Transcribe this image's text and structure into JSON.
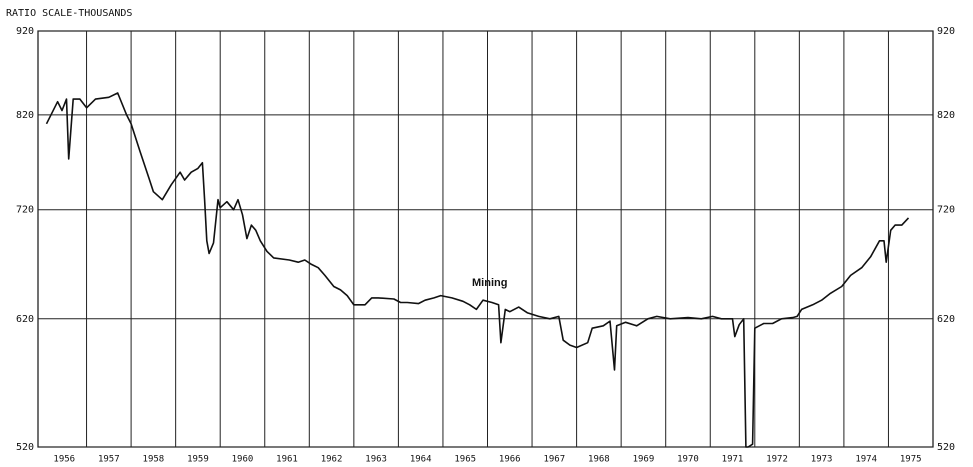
{
  "chart_data": {
    "type": "line",
    "y_label": "RATIO SCALE-THOUSANDS",
    "annotation": "Mining",
    "log": true,
    "grid": true,
    "color": "#111111",
    "ylim": [
      520,
      920
    ],
    "yticks": [
      520,
      620,
      720,
      820,
      920
    ],
    "xlim": [
      1956,
      1976
    ],
    "categories": [
      "1956",
      "1957",
      "1958",
      "1959",
      "1960",
      "1961",
      "1962",
      "1963",
      "1964",
      "1965",
      "1966",
      "1967",
      "1968",
      "1969",
      "1970",
      "1971",
      "1972",
      "1973",
      "1974",
      "1975"
    ],
    "x": [
      1956.1,
      1956.35,
      1956.45,
      1956.55,
      1956.6,
      1956.7,
      1956.85,
      1957.0,
      1957.2,
      1957.5,
      1957.7,
      1957.9,
      1958.0,
      1958.2,
      1958.4,
      1958.5,
      1958.7,
      1958.9,
      1959.1,
      1959.2,
      1959.35,
      1959.5,
      1959.6,
      1959.65,
      1959.7,
      1959.75,
      1959.85,
      1959.95,
      1960.0,
      1960.15,
      1960.3,
      1960.4,
      1960.5,
      1960.6,
      1960.7,
      1960.8,
      1960.9,
      1961.05,
      1961.2,
      1961.55,
      1961.75,
      1961.9,
      1962.05,
      1962.2,
      1962.35,
      1962.55,
      1962.7,
      1962.85,
      1963.0,
      1963.25,
      1963.4,
      1963.55,
      1963.9,
      1964.05,
      1964.2,
      1964.45,
      1964.6,
      1964.8,
      1964.95,
      1965.2,
      1965.45,
      1965.6,
      1965.75,
      1965.9,
      1966.1,
      1966.25,
      1966.3,
      1966.4,
      1966.5,
      1966.7,
      1966.9,
      1967.15,
      1967.4,
      1967.6,
      1967.7,
      1967.85,
      1968.0,
      1968.25,
      1968.35,
      1968.6,
      1968.75,
      1968.85,
      1968.9,
      1969.1,
      1969.35,
      1969.6,
      1969.8,
      1970.1,
      1970.5,
      1970.8,
      1971.05,
      1971.25,
      1971.5,
      1971.55,
      1971.65,
      1971.75,
      1971.8,
      1971.85,
      1971.95,
      1972.0,
      1972.2,
      1972.4,
      1972.6,
      1972.85,
      1972.95,
      1973.05,
      1973.3,
      1973.5,
      1973.7,
      1973.95,
      1974.15,
      1974.4,
      1974.6,
      1974.8,
      1974.9,
      1974.95,
      1975.05,
      1975.15,
      1975.3,
      1975.45
    ],
    "values": [
      810,
      835,
      825,
      838,
      772,
      838,
      838,
      828,
      838,
      840,
      845,
      820,
      810,
      780,
      752,
      738,
      730,
      745,
      758,
      750,
      758,
      762,
      768,
      730,
      690,
      678,
      688,
      730,
      722,
      728,
      720,
      730,
      715,
      692,
      705,
      700,
      690,
      680,
      674,
      672,
      670,
      672,
      668,
      665,
      658,
      648,
      645,
      640,
      632,
      632,
      638,
      638,
      637,
      634,
      634,
      633,
      636,
      638,
      640,
      638,
      635,
      632,
      628,
      636,
      634,
      632,
      600,
      628,
      626,
      630,
      625,
      622,
      620,
      622,
      602,
      598,
      596,
      600,
      612,
      614,
      618,
      578,
      614,
      617,
      614,
      620,
      622,
      620,
      621,
      620,
      622,
      620,
      620,
      605,
      615,
      620,
      520,
      520,
      522,
      612,
      616,
      616,
      620,
      621,
      622,
      628,
      632,
      636,
      642,
      648,
      658,
      665,
      675,
      690,
      690,
      670,
      700,
      705,
      705,
      712
    ]
  }
}
